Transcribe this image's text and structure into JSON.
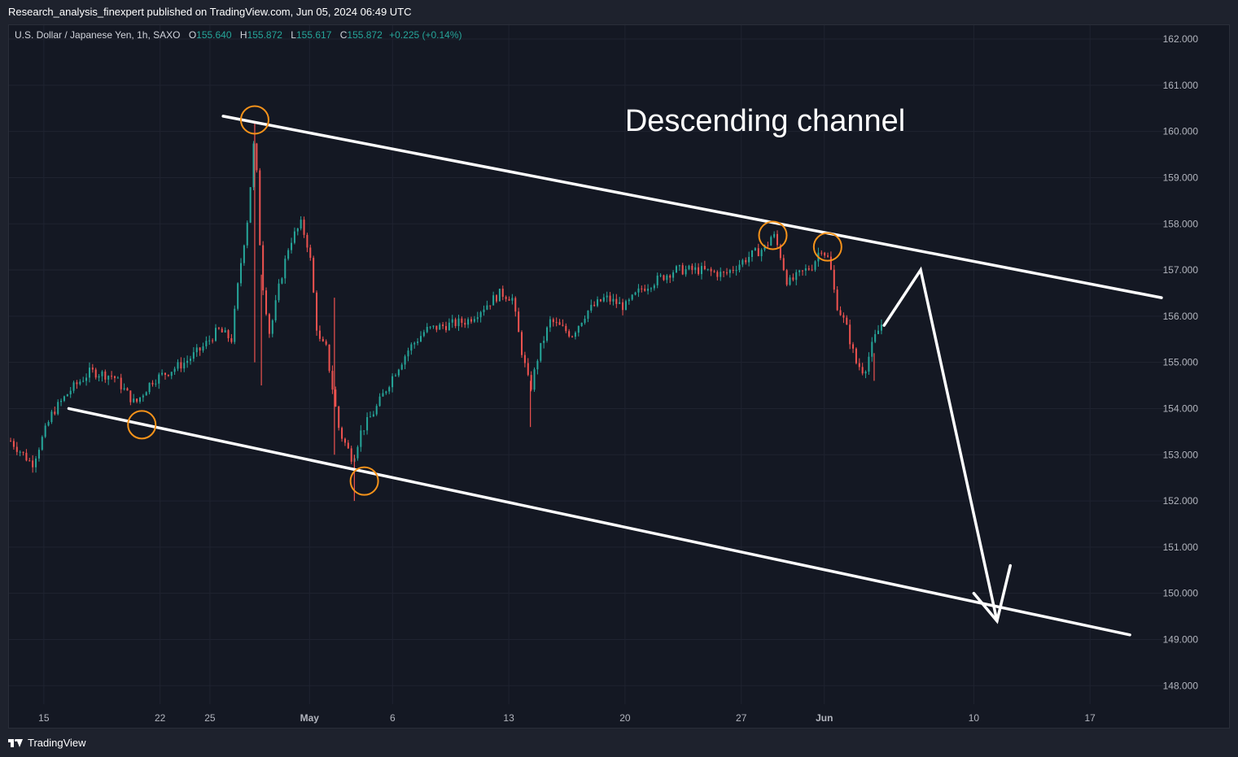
{
  "header": {
    "published": "Research_analysis_finexpert published on TradingView.com, Jun 05, 2024 06:49 UTC"
  },
  "legend": {
    "symbol": "U.S. Dollar / Japanese Yen, 1h, SAXO",
    "open_label": "O",
    "open": "155.640",
    "high_label": "H",
    "high": "155.872",
    "low_label": "L",
    "low": "155.617",
    "close_label": "C",
    "close": "155.872",
    "change": "+0.225 (+0.14%)"
  },
  "footer": {
    "brand": "TradingView"
  },
  "colors": {
    "up": "#26a69a",
    "down": "#ef5350",
    "background": "#141823",
    "grid": "#1f2330",
    "annotation": "#ffffff",
    "marker": "#f7931a"
  },
  "chart_data": {
    "type": "candlestick",
    "title": "",
    "annotation_text": "Descending channel",
    "x_ticks": [
      "15",
      "22",
      "25",
      "May",
      "6",
      "13",
      "20",
      "27",
      "Jun",
      "10",
      "17"
    ],
    "x_tick_days": [
      15,
      22,
      25,
      31,
      36,
      43,
      50,
      57,
      62,
      71,
      78
    ],
    "y_ticks": [
      "162.000",
      "161.000",
      "160.000",
      "159.000",
      "158.000",
      "157.000",
      "156.000",
      "155.000",
      "154.000",
      "153.000",
      "152.000",
      "151.000",
      "150.000",
      "149.000",
      "148.000"
    ],
    "ylim": [
      147.6,
      162.3
    ],
    "xlim": [
      12.9,
      82.5
    ],
    "price_path": [
      [
        13,
        153.3
      ],
      [
        14.3,
        152.8
      ],
      [
        15.5,
        153.9
      ],
      [
        16.6,
        154.4
      ],
      [
        17.8,
        154.8
      ],
      [
        19.2,
        154.7
      ],
      [
        20.5,
        154.1
      ],
      [
        21.5,
        154.6
      ],
      [
        23.5,
        155.0
      ],
      [
        24.5,
        155.3
      ],
      [
        25.5,
        155.7
      ],
      [
        26.3,
        155.5
      ],
      [
        26.8,
        157.0
      ],
      [
        27.3,
        158.2
      ],
      [
        27.7,
        160.0
      ],
      [
        28.1,
        156.9
      ],
      [
        28.6,
        155.6
      ],
      [
        29.2,
        156.7
      ],
      [
        29.8,
        157.6
      ],
      [
        30.5,
        158.0
      ],
      [
        31,
        157.4
      ],
      [
        31.5,
        155.5
      ],
      [
        32,
        155.3
      ],
      [
        32.8,
        153.5
      ],
      [
        33.6,
        152.9
      ],
      [
        34.1,
        153.5
      ],
      [
        35,
        154.0
      ],
      [
        36,
        154.7
      ],
      [
        37,
        155.3
      ],
      [
        38,
        155.7
      ],
      [
        39.2,
        155.8
      ],
      [
        40.5,
        155.9
      ],
      [
        41.5,
        156.2
      ],
      [
        42.5,
        156.5
      ],
      [
        43.2,
        156.4
      ],
      [
        43.8,
        155.2
      ],
      [
        44.3,
        154.4
      ],
      [
        44.8,
        155.2
      ],
      [
        45.5,
        155.9
      ],
      [
        46.8,
        155.6
      ],
      [
        47.7,
        156.1
      ],
      [
        48.8,
        156.4
      ],
      [
        50,
        156.2
      ],
      [
        51,
        156.6
      ],
      [
        52,
        156.8
      ],
      [
        53,
        157.0
      ],
      [
        54.5,
        157.0
      ],
      [
        56,
        156.9
      ],
      [
        57.5,
        157.3
      ],
      [
        58.5,
        157.5
      ],
      [
        58.9,
        157.8
      ],
      [
        59.3,
        157.4
      ],
      [
        59.8,
        156.7
      ],
      [
        60.5,
        156.9
      ],
      [
        61.3,
        157.1
      ],
      [
        61.8,
        157.5
      ],
      [
        62.3,
        157.2
      ],
      [
        62.7,
        156.3
      ],
      [
        63.3,
        155.8
      ],
      [
        63.9,
        155.0
      ],
      [
        64.4,
        154.8
      ],
      [
        65.0,
        155.5
      ],
      [
        65.5,
        155.87
      ]
    ],
    "wick_spikes": [
      {
        "day": 27.7,
        "high": 160.2,
        "low": 155.0
      },
      {
        "day": 28.1,
        "high": 156.9,
        "low": 154.5
      },
      {
        "day": 32.5,
        "high": 156.4,
        "low": 153.0
      },
      {
        "day": 33.7,
        "high": 153.0,
        "low": 152.0
      },
      {
        "day": 44.3,
        "high": 154.6,
        "low": 153.6
      },
      {
        "day": 65.0,
        "high": 155.2,
        "low": 154.6
      }
    ],
    "channel": {
      "upper": {
        "x1": 25.8,
        "y1": 160.33,
        "x2": 82.3,
        "y2": 156.4
      },
      "lower": {
        "x1": 16.5,
        "y1": 154.0,
        "x2": 80.4,
        "y2": 149.1
      }
    },
    "projection": [
      [
        65.6,
        155.8
      ],
      [
        67.8,
        157.0
      ],
      [
        72.4,
        149.4
      ]
    ],
    "arrow_head": [
      [
        71.0,
        150.0
      ],
      [
        72.4,
        149.4
      ],
      [
        73.2,
        150.6
      ]
    ],
    "touch_points": [
      {
        "day": 20.9,
        "price": 153.65
      },
      {
        "day": 27.7,
        "price": 160.25
      },
      {
        "day": 34.3,
        "price": 152.43
      },
      {
        "day": 58.9,
        "price": 157.75
      },
      {
        "day": 62.2,
        "price": 157.5
      }
    ]
  }
}
